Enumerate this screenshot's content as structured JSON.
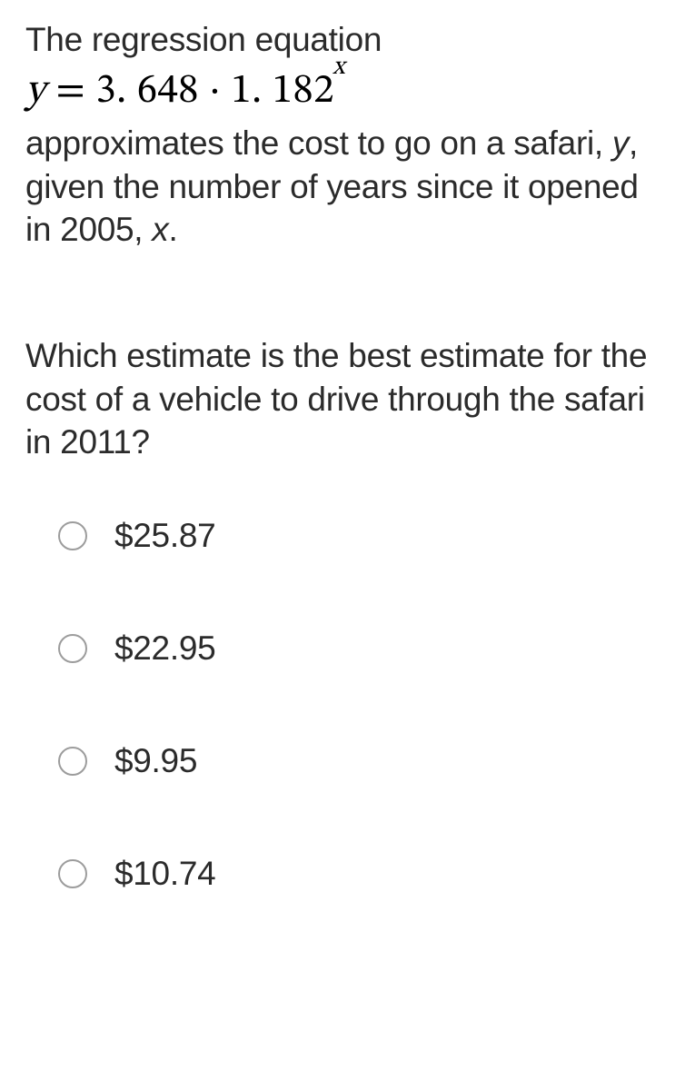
{
  "intro": {
    "line1": "The regression equation",
    "equation": {
      "y_var": "y",
      "equals": " = ",
      "coef": "3. 648",
      "dot": " · ",
      "base": "1. 182",
      "exp": "x"
    },
    "line2_part1": "approximates the cost to go on a safari, ",
    "line2_yvar": "y",
    "line2_part2": ", given the number of years since it opened in 2005, ",
    "line2_xvar": "x",
    "line2_part3": "."
  },
  "question": "Which estimate is the best estimate for the cost of a vehicle to drive through the safari in 2011?",
  "options": [
    {
      "label": "$25.87"
    },
    {
      "label": "$22.95"
    },
    {
      "label": "$9.95"
    },
    {
      "label": "$10.74"
    }
  ],
  "colors": {
    "text": "#2b2b2b",
    "equation": "#000000",
    "radio_border": "#9c9c9c",
    "background": "#ffffff"
  },
  "typography": {
    "body_fontsize": 37,
    "equation_fontsize": 45
  }
}
